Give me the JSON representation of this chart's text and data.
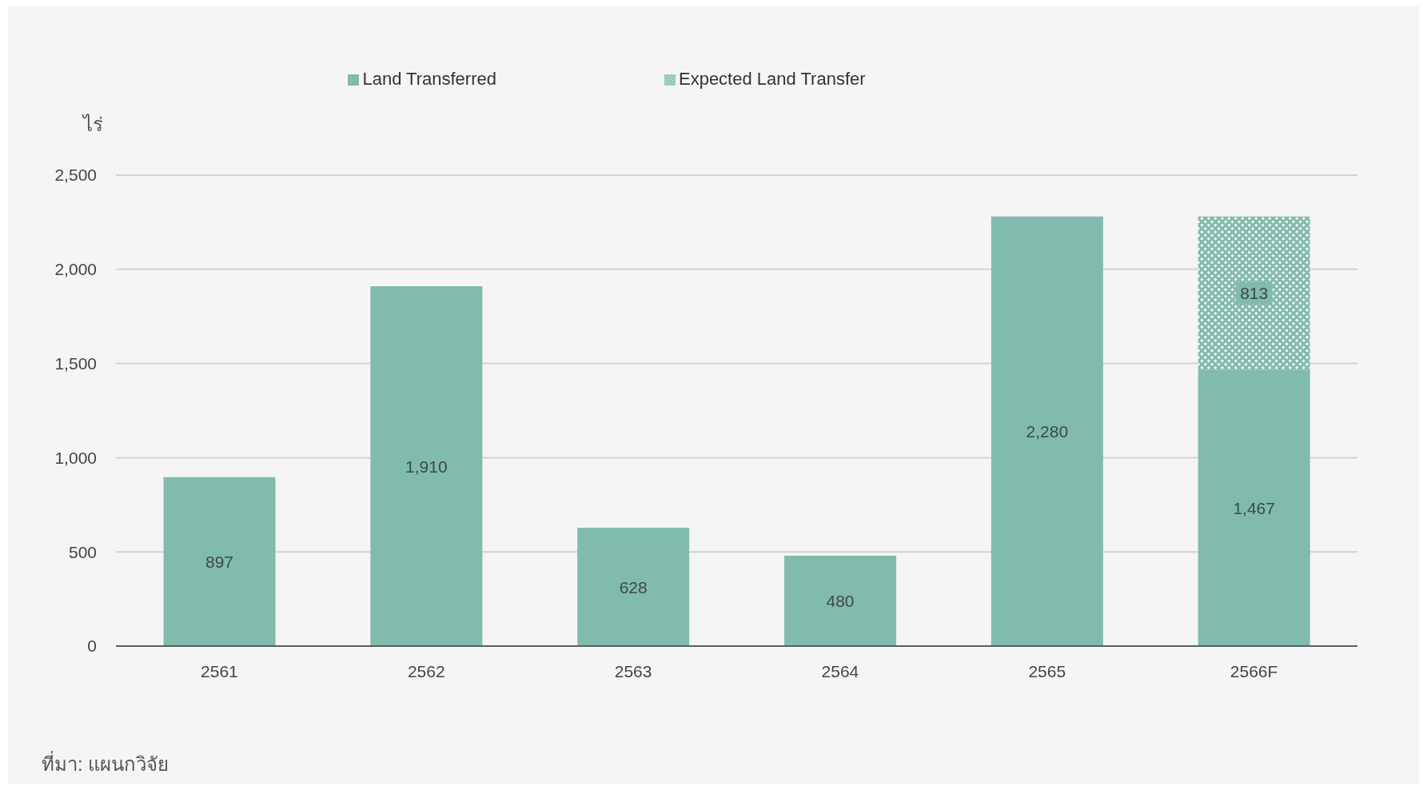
{
  "chart_data": {
    "type": "bar",
    "stacked": true,
    "ylabel": "ไร่",
    "categories": [
      "2561",
      "2562",
      "2563",
      "2564",
      "2565",
      "2566F"
    ],
    "series": [
      {
        "name": "Land Transferred",
        "color": "#81bbad",
        "values": [
          897,
          1910,
          628,
          480,
          2280,
          1467
        ],
        "value_labels": [
          "897",
          "1,910",
          "628",
          "480",
          "2,280",
          "1,467"
        ]
      },
      {
        "name": "Expected Land Transfer",
        "color": "#81bbad",
        "values": [
          null,
          null,
          null,
          null,
          null,
          813
        ],
        "value_labels": [
          null,
          null,
          null,
          null,
          null,
          "813"
        ]
      }
    ],
    "ylim": [
      0,
      2500
    ],
    "yticks": [
      0,
      {
        "value": 500,
        "label": "500"
      },
      {
        "value": 1000,
        "label": "1,000"
      },
      {
        "value": 1500,
        "label": "1,500"
      },
      {
        "value": 2000,
        "label": "2,000"
      },
      {
        "value": 2500,
        "label": "2,500"
      }
    ],
    "grid": "y",
    "legend": "top",
    "annotations": [
      "ที่มา: แผนกวิจัย"
    ]
  }
}
